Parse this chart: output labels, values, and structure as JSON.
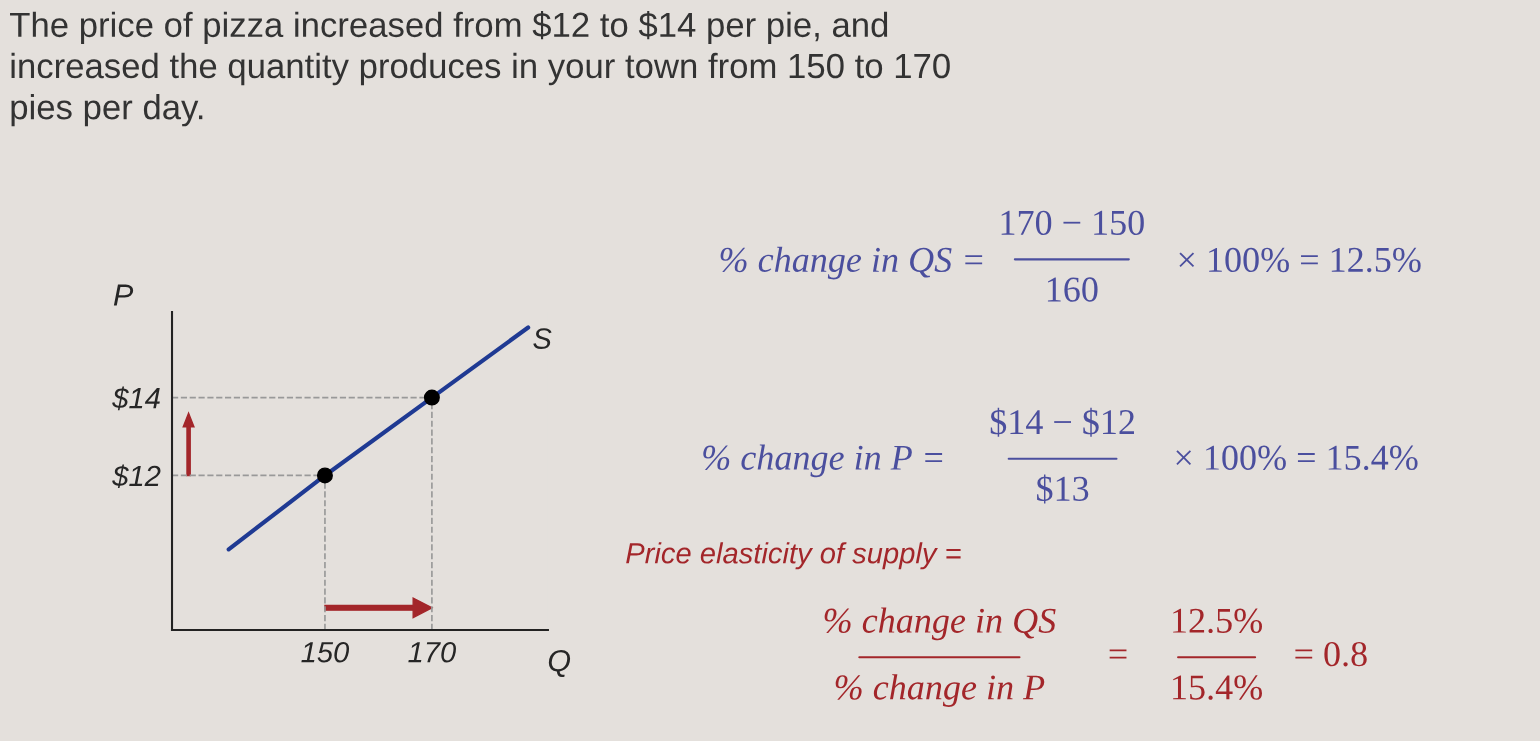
{
  "chart_data": {
    "type": "line",
    "title": "The price of pizza increased from $12 to $14 per pie, and\nincreased the quantity produces in your town from 150 to 170\npies per day.",
    "xlabel": "Q",
    "ylabel": "P",
    "series": [
      {
        "name": "S",
        "color": "#1f3a93",
        "x": [
          132,
          150,
          170,
          188
        ],
        "values": [
          10.1,
          12,
          14,
          15.8
        ]
      },
      {
        "type": "scatter",
        "color": "#000000",
        "x": [
          150,
          170
        ],
        "values": [
          12,
          14
        ]
      }
    ],
    "xlim": [
      121.4,
      191.7
    ],
    "ylim": [
      8.03,
      16.2
    ],
    "xticks": [
      150,
      170
    ],
    "yticks": [
      {
        "value": 12,
        "label": "$12"
      },
      {
        "value": 14,
        "label": "$14"
      }
    ],
    "ref_lines": [
      {
        "axis": "x",
        "value": 150,
        "color": "#999999",
        "line_style": "dashed"
      },
      {
        "axis": "x",
        "value": 170,
        "color": "#999999",
        "line_style": "dashed"
      },
      {
        "axis": "y",
        "value": 12,
        "color": "#999999",
        "line_style": "dashed"
      },
      {
        "axis": "y",
        "value": 14,
        "color": "#999999",
        "line_style": "dashed"
      }
    ],
    "annotations": [
      "% change in QS =",
      "170 − 150",
      "160",
      "× 100% = 12.5%",
      "% change in P =",
      "$14 − $12",
      "$13",
      "× 100% = 15.4%",
      "Price elasticity of supply =",
      "% change in QS",
      "% change in P",
      "=",
      "12.5%",
      "15.4%",
      "= 0.8"
    ],
    "grid": false,
    "legend": false
  }
}
